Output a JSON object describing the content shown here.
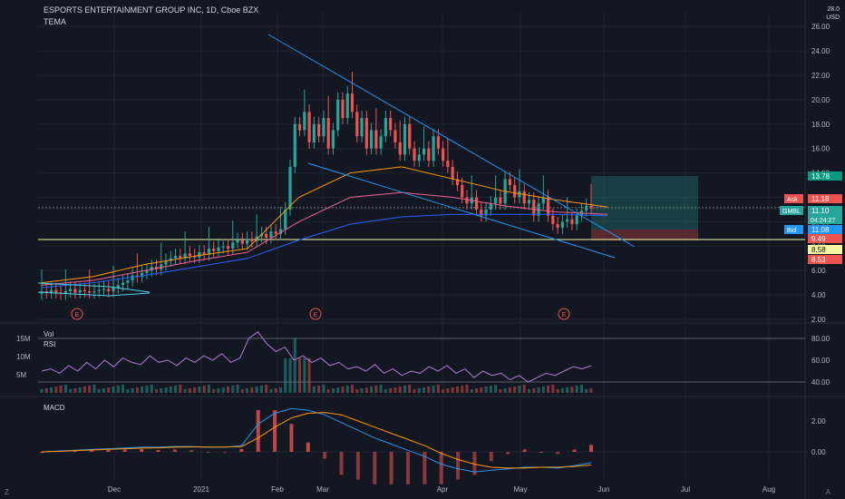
{
  "header": {
    "symbol_line": "ESPORTS ENTERTAINMENT GROUP INC, 1D, Cboe BZX",
    "indicator": "TEMA",
    "currency_top": "28.0",
    "currency": "USD"
  },
  "panes": {
    "vol_label": "Vol",
    "rsi_label": "RSI",
    "macd_label": "MACD"
  },
  "corners": {
    "left": "Z",
    "right": "A"
  },
  "colors": {
    "background": "#131722",
    "grid": "#1e222d",
    "up": "#26a69a",
    "down": "#ef5350",
    "trendline": "#2196f3",
    "support": "#f5f5a0",
    "ema_orange": "#ff9800",
    "ema_blue": "#2962ff",
    "rsi": "#b07cd6",
    "macd": "#2196f3",
    "signal": "#ff9800"
  },
  "chart_data": {
    "type": "candlestick",
    "title": "ESPORTS ENTERTAINMENT GROUP INC, 1D, Cboe BZX",
    "x_ticks": [
      "Dec",
      "2021",
      "Feb",
      "Mar",
      "Apr",
      "May",
      "Jun",
      "Jul",
      "Aug"
    ],
    "price_axis": {
      "ticks": [
        2.0,
        4.0,
        6.0,
        8.0,
        10.0,
        12.0,
        14.0,
        16.0,
        18.0,
        20.0,
        22.0,
        24.0,
        26.0
      ],
      "ylim": [
        2,
        28
      ]
    },
    "price_markers": [
      {
        "label": "",
        "value": "13.78",
        "color": "#089981"
      },
      {
        "label": "Ask",
        "value": "11.18",
        "color": "#ef5350"
      },
      {
        "label": "GMBL",
        "value": "11.10",
        "sub": "04:24:27",
        "color": "#26a69a"
      },
      {
        "label": "Bid",
        "value": "11.08",
        "color": "#2196f3"
      },
      {
        "label": "",
        "value": "9.49",
        "color": "#ef5350"
      },
      {
        "label": "",
        "value": "8.58",
        "color": "#f5f5a0"
      },
      {
        "label": "",
        "value": "8.53",
        "color": "#ef5350"
      }
    ],
    "earnings_markers": [
      "E",
      "E",
      "E"
    ],
    "closes": [
      4.3,
      4.2,
      4.4,
      4.2,
      4.1,
      4.3,
      4.5,
      4.2,
      4.4,
      4.3,
      4.2,
      4.3,
      4.4,
      4.5,
      4.3,
      4.6,
      4.8,
      5.0,
      5.2,
      5.6,
      5.5,
      5.8,
      6.0,
      6.3,
      6.1,
      6.5,
      6.8,
      7.0,
      7.2,
      7.0,
      7.4,
      7.2,
      7.1,
      7.5,
      7.3,
      7.8,
      7.6,
      7.9,
      8.0,
      7.8,
      8.3,
      8.5,
      8.2,
      8.6,
      8.4,
      8.8,
      9.0,
      8.7,
      9.2,
      9.0,
      9.4,
      11.0,
      14.5,
      18.0,
      17.5,
      19.0,
      16.5,
      18.0,
      17.0,
      18.5,
      16.0,
      17.5,
      20.0,
      18.5,
      20.5,
      19.0,
      17.0,
      18.5,
      16.0,
      17.5,
      16.0,
      17.0,
      18.5,
      17.5,
      16.5,
      15.5,
      18.0,
      16.0,
      15.0,
      15.5,
      16.0,
      15.0,
      17.0,
      16.0,
      15.0,
      14.5,
      13.5,
      13.0,
      12.0,
      11.5,
      12.0,
      11.0,
      10.5,
      11.0,
      11.5,
      12.0,
      11.5,
      13.5,
      13.0,
      12.0,
      12.5,
      11.5,
      11.8,
      10.5,
      11.5,
      12.0,
      10.5,
      9.8,
      9.5,
      10.0,
      10.2,
      9.8,
      10.5,
      10.9,
      11.3,
      11.1
    ],
    "emas": [
      {
        "name": "",
        "color": "#ff9800",
        "values": [
          5.0,
          5.5,
          6.5,
          7.2,
          7.8,
          12.0,
          14.0,
          14.5,
          13.5,
          12.5,
          11.8,
          11.2
        ]
      },
      {
        "name": "",
        "color": "#f06292",
        "values": [
          4.8,
          5.2,
          6.0,
          6.8,
          7.5,
          10.0,
          12.0,
          12.4,
          12.0,
          11.3,
          10.8,
          10.6
        ]
      },
      {
        "name": "",
        "color": "#2962ff",
        "values": [
          4.6,
          5.0,
          5.6,
          6.3,
          7.0,
          8.5,
          9.8,
          10.4,
          10.6,
          10.6,
          10.6,
          10.5
        ]
      }
    ],
    "vol_axis": [
      "15M",
      "10M",
      "5M"
    ],
    "rsi_axis": [
      80.0,
      60.0,
      40.0
    ],
    "rsi_values": [
      50,
      52,
      48,
      55,
      50,
      58,
      52,
      60,
      54,
      62,
      58,
      56,
      64,
      58,
      60,
      55,
      62,
      58,
      64,
      60,
      66,
      58,
      62,
      80,
      86,
      75,
      68,
      72,
      60,
      64,
      58,
      62,
      55,
      58,
      52,
      54,
      50,
      56,
      48,
      52,
      46,
      50,
      48,
      54,
      50,
      55,
      48,
      52,
      44,
      50,
      46,
      48,
      42,
      46,
      40,
      44,
      48,
      46,
      50,
      54,
      52,
      55
    ],
    "macd_axis": [
      2.0,
      0.0
    ],
    "macd_values": [
      0.0,
      0.05,
      0.1,
      0.15,
      0.2,
      0.25,
      0.3,
      0.3,
      0.35,
      0.35,
      0.3,
      0.3,
      0.4,
      1.8,
      2.5,
      2.8,
      2.7,
      2.4,
      1.9,
      1.4,
      0.9,
      0.5,
      0.1,
      -0.3,
      -0.8,
      -1.1,
      -1.3,
      -1.2,
      -1.1,
      -1.0,
      -1.0,
      -1.05,
      -0.9,
      -0.7
    ],
    "signal_values": [
      0.0,
      0.03,
      0.08,
      0.12,
      0.16,
      0.2,
      0.24,
      0.26,
      0.3,
      0.32,
      0.31,
      0.31,
      0.34,
      0.9,
      1.6,
      2.2,
      2.5,
      2.55,
      2.4,
      2.0,
      1.6,
      1.2,
      0.8,
      0.4,
      -0.1,
      -0.5,
      -0.8,
      -1.0,
      -1.05,
      -1.05,
      -1.0,
      -1.0,
      -0.95,
      -0.85
    ]
  }
}
